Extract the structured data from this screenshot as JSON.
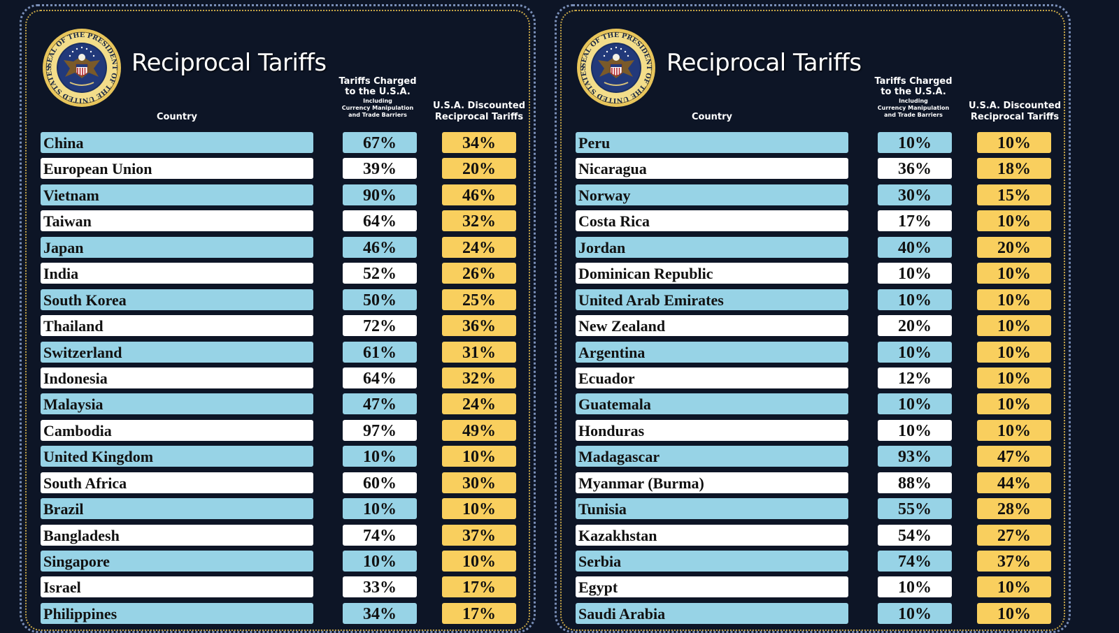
{
  "colors": {
    "background": "#0d1526",
    "row_blue": "#97d3e6",
    "row_white": "#ffffff",
    "discount_gold": "#f9cf5e"
  },
  "seal_text": "SEAL OF THE PRESIDENT OF THE UNITED STATES",
  "panels": [
    {
      "title": "Reciprocal Tariffs",
      "header_country": "Country",
      "header_charged_1": "Tariffs Charged",
      "header_charged_2": "to the U.S.A.",
      "header_charged_3": "Including",
      "header_charged_4": "Currency Manipulation",
      "header_charged_5": "and Trade Barriers",
      "header_discount_1": "U.S.A. Discounted",
      "header_discount_2": "Reciprocal Tariffs",
      "rows": [
        {
          "country": "China",
          "charged": "67%",
          "discounted": "34%"
        },
        {
          "country": "European Union",
          "charged": "39%",
          "discounted": "20%"
        },
        {
          "country": "Vietnam",
          "charged": "90%",
          "discounted": "46%"
        },
        {
          "country": "Taiwan",
          "charged": "64%",
          "discounted": "32%"
        },
        {
          "country": "Japan",
          "charged": "46%",
          "discounted": "24%"
        },
        {
          "country": "India",
          "charged": "52%",
          "discounted": "26%"
        },
        {
          "country": "South Korea",
          "charged": "50%",
          "discounted": "25%"
        },
        {
          "country": "Thailand",
          "charged": "72%",
          "discounted": "36%"
        },
        {
          "country": "Switzerland",
          "charged": "61%",
          "discounted": "31%"
        },
        {
          "country": "Indonesia",
          "charged": "64%",
          "discounted": "32%"
        },
        {
          "country": "Malaysia",
          "charged": "47%",
          "discounted": "24%"
        },
        {
          "country": "Cambodia",
          "charged": "97%",
          "discounted": "49%"
        },
        {
          "country": "United Kingdom",
          "charged": "10%",
          "discounted": "10%"
        },
        {
          "country": "South Africa",
          "charged": "60%",
          "discounted": "30%"
        },
        {
          "country": "Brazil",
          "charged": "10%",
          "discounted": "10%"
        },
        {
          "country": "Bangladesh",
          "charged": "74%",
          "discounted": "37%"
        },
        {
          "country": "Singapore",
          "charged": "10%",
          "discounted": "10%"
        },
        {
          "country": "Israel",
          "charged": "33%",
          "discounted": "17%"
        },
        {
          "country": "Philippines",
          "charged": "34%",
          "discounted": "17%"
        }
      ]
    },
    {
      "title": "Reciprocal Tariffs",
      "header_country": "Country",
      "header_charged_1": "Tariffs Charged",
      "header_charged_2": "to the U.S.A.",
      "header_charged_3": "Including",
      "header_charged_4": "Currency Manipulation",
      "header_charged_5": "and Trade Barriers",
      "header_discount_1": "U.S.A. Discounted",
      "header_discount_2": "Reciprocal Tariffs",
      "rows": [
        {
          "country": "Peru",
          "charged": "10%",
          "discounted": "10%"
        },
        {
          "country": "Nicaragua",
          "charged": "36%",
          "discounted": "18%"
        },
        {
          "country": "Norway",
          "charged": "30%",
          "discounted": "15%"
        },
        {
          "country": "Costa Rica",
          "charged": "17%",
          "discounted": "10%"
        },
        {
          "country": "Jordan",
          "charged": "40%",
          "discounted": "20%"
        },
        {
          "country": "Dominican Republic",
          "charged": "10%",
          "discounted": "10%"
        },
        {
          "country": "United Arab Emirates",
          "charged": "10%",
          "discounted": "10%"
        },
        {
          "country": "New Zealand",
          "charged": "20%",
          "discounted": "10%"
        },
        {
          "country": "Argentina",
          "charged": "10%",
          "discounted": "10%"
        },
        {
          "country": "Ecuador",
          "charged": "12%",
          "discounted": "10%"
        },
        {
          "country": "Guatemala",
          "charged": "10%",
          "discounted": "10%"
        },
        {
          "country": "Honduras",
          "charged": "10%",
          "discounted": "10%"
        },
        {
          "country": "Madagascar",
          "charged": "93%",
          "discounted": "47%"
        },
        {
          "country": "Myanmar (Burma)",
          "charged": "88%",
          "discounted": "44%"
        },
        {
          "country": "Tunisia",
          "charged": "55%",
          "discounted": "28%"
        },
        {
          "country": "Kazakhstan",
          "charged": "54%",
          "discounted": "27%"
        },
        {
          "country": "Serbia",
          "charged": "74%",
          "discounted": "37%"
        },
        {
          "country": "Egypt",
          "charged": "10%",
          "discounted": "10%"
        },
        {
          "country": "Saudi Arabia",
          "charged": "10%",
          "discounted": "10%"
        }
      ]
    }
  ]
}
